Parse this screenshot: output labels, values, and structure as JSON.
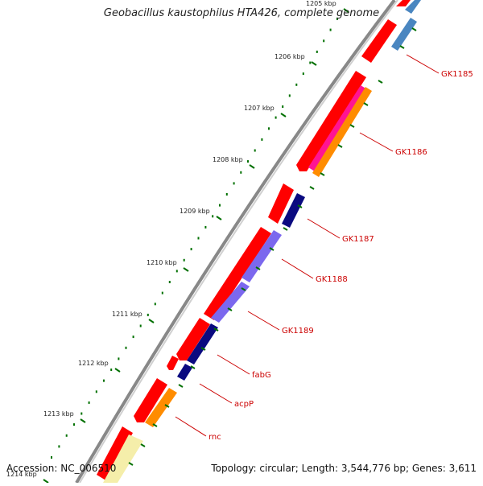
{
  "title": "Geobacillus kaustophilus HTA426, complete genome",
  "footer": {
    "accession": "Accession: NC_006510",
    "summary": "Topology: circular; Length: 3,544,776 bp; Genes: 3,611"
  },
  "ticks": [
    "1205 kbp",
    "1206 kbp",
    "1207 kbp",
    "1208 kbp",
    "1209 kbp",
    "1210 kbp",
    "1211 kbp",
    "1212 kbp",
    "1213 kbp",
    "1214 kbp"
  ],
  "genes": [
    {
      "label": "GK1185",
      "color": "#4a86c0"
    },
    {
      "label": "GK1186",
      "color": "#ff8c00"
    },
    {
      "label": "GK1187",
      "color": "#0a0a80"
    },
    {
      "label": "GK1188",
      "color": "#7b68ee"
    },
    {
      "label": "GK1189",
      "color": "#7b68ee"
    },
    {
      "label": "fabG",
      "color": "#0a0a80"
    },
    {
      "label": "acpP",
      "color": "#0a0a80"
    },
    {
      "label": "rnc",
      "color": "#ff8c00"
    }
  ],
  "colors": {
    "cds_forward": "#ff0000",
    "orange_track": "#ff8c00",
    "pink_track": "#ff1493",
    "gc_dots": "#007000",
    "label_red": "#cc0000"
  }
}
